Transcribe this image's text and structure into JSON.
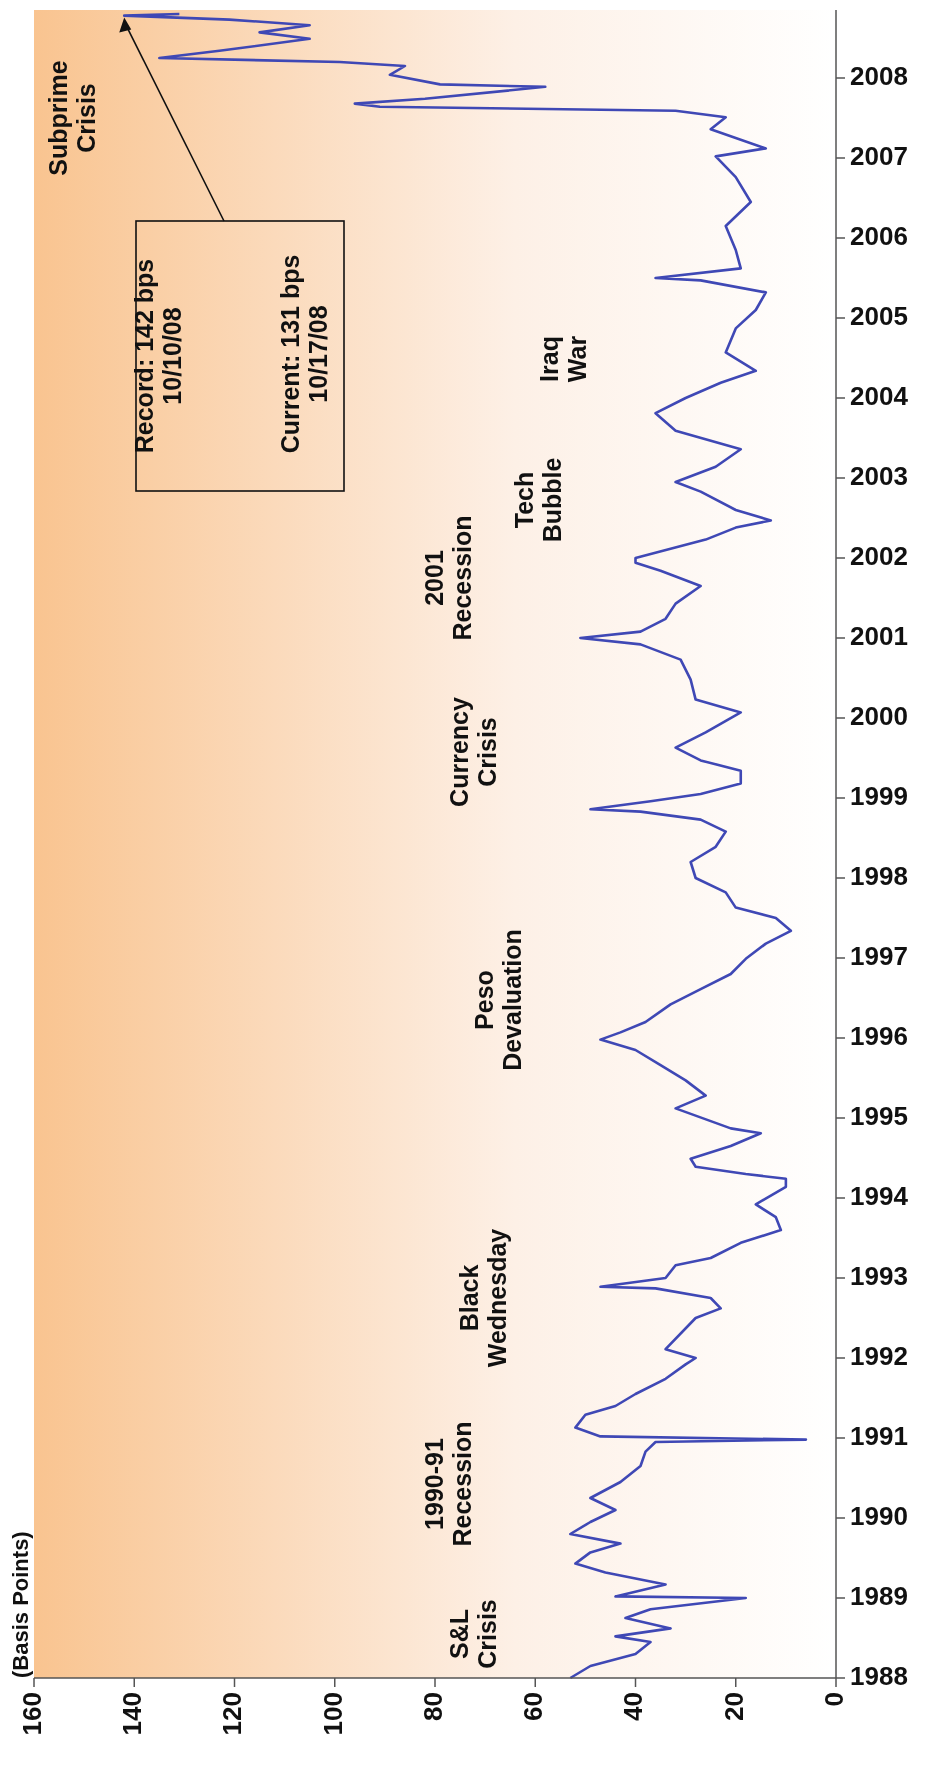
{
  "chart_data": {
    "type": "line",
    "x": [
      53,
      49,
      40,
      37,
      44,
      33,
      42,
      37,
      18,
      44,
      34,
      46,
      52,
      49,
      43,
      53,
      49,
      44,
      49,
      43,
      39,
      38,
      36,
      6,
      47,
      52,
      50,
      44,
      40,
      34,
      30,
      28,
      34,
      28,
      23,
      25,
      36,
      47,
      34,
      32,
      25,
      19,
      11,
      12,
      16,
      10,
      10,
      18,
      28,
      29,
      21,
      15,
      21,
      32,
      26,
      30,
      35,
      40,
      47,
      43,
      38,
      33,
      27,
      21,
      18,
      14,
      9,
      12,
      20,
      22,
      28,
      29,
      24,
      22,
      27,
      39,
      49,
      37,
      27,
      19,
      19,
      27,
      32,
      26,
      19,
      28,
      29,
      31,
      39,
      51,
      39,
      34,
      32,
      27,
      35,
      40,
      40,
      26,
      20,
      13,
      20,
      27,
      32,
      24,
      19,
      32,
      36,
      30,
      23,
      16,
      22,
      20,
      16,
      14,
      27,
      36,
      19,
      20,
      22,
      17,
      20,
      24,
      14,
      25,
      22,
      32,
      91,
      96,
      82,
      58,
      79,
      89,
      86,
      99,
      135,
      123,
      105,
      115,
      105,
      121,
      142,
      131
    ],
    "series": [
      {
        "color": "#3f48b5",
        "values": [
          1988.0,
          1988.15,
          1988.3,
          1988.45,
          1988.52,
          1988.62,
          1988.75,
          1988.86,
          1989.0,
          1989.02,
          1989.17,
          1989.32,
          1989.43,
          1989.57,
          1989.68,
          1989.8,
          1989.95,
          1990.1,
          1990.25,
          1990.45,
          1990.65,
          1990.83,
          1990.95,
          1990.98,
          1991.02,
          1991.13,
          1991.29,
          1991.4,
          1991.55,
          1991.74,
          1991.92,
          1992.0,
          1992.11,
          1992.5,
          1992.62,
          1992.75,
          1992.87,
          1992.89,
          1993.0,
          1993.16,
          1993.25,
          1993.44,
          1993.6,
          1993.76,
          1993.92,
          1994.14,
          1994.24,
          1994.3,
          1994.39,
          1994.49,
          1994.65,
          1994.81,
          1994.87,
          1995.12,
          1995.28,
          1995.47,
          1995.66,
          1995.85,
          1995.98,
          1996.07,
          1996.2,
          1996.42,
          1996.61,
          1996.8,
          1996.99,
          1997.18,
          1997.34,
          1997.5,
          1997.63,
          1997.82,
          1998.0,
          1998.2,
          1998.39,
          1998.58,
          1998.73,
          1998.83,
          1998.86,
          1998.96,
          1999.05,
          1999.18,
          1999.34,
          1999.47,
          1999.63,
          1999.82,
          2000.07,
          2000.23,
          2000.48,
          2000.73,
          2000.92,
          2001.0,
          2001.08,
          2001.24,
          2001.43,
          2001.65,
          2001.84,
          2001.94,
          2002.0,
          2002.23,
          2002.38,
          2002.47,
          2002.6,
          2002.83,
          2002.95,
          2003.14,
          2003.36,
          2003.59,
          2003.81,
          2004.0,
          2004.19,
          2004.34,
          2004.57,
          2004.87,
          2005.1,
          2005.32,
          2005.47,
          2005.5,
          2005.62,
          2005.85,
          2006.15,
          2006.45,
          2006.76,
          2007.02,
          2007.12,
          2007.36,
          2007.51,
          2007.59,
          2007.64,
          2007.68,
          2007.74,
          2007.89,
          2007.92,
          2008.04,
          2008.15,
          2008.2,
          2008.25,
          2008.34,
          2008.49,
          2008.57,
          2008.66,
          2008.73,
          2008.78,
          2008.8
        ]
      }
    ],
    "ylim": [
      1988,
      2008.85
    ],
    "yticks": [
      1988,
      1989,
      1990,
      1991,
      1992,
      1993,
      1994,
      1995,
      1996,
      1997,
      1998,
      1999,
      2000,
      2001,
      2002,
      2003,
      2004,
      2005,
      2006,
      2007,
      2008
    ],
    "xlim": [
      160,
      0
    ],
    "xticks": [
      160,
      140,
      120,
      100,
      80,
      60,
      40,
      20,
      0
    ],
    "grid": false,
    "annotations": [
      "S&L\nCrisis",
      "1990-91\nRecession",
      "Black\nWednesday",
      "Peso\nDevaluation",
      "Currency\nCrisis",
      "2001\nRecession",
      "Tech\nBubble",
      "Iraq\nWar",
      "Subprime\nCrisis",
      "Record: 142 bps\n10/10/08",
      "Current: 131 bps\n10/17/08",
      "(Basis Points)"
    ]
  }
}
